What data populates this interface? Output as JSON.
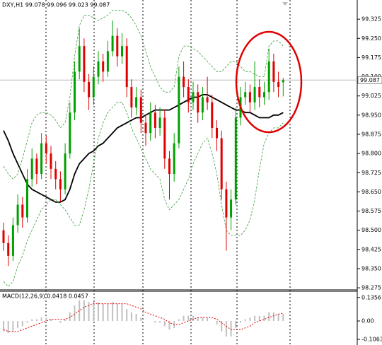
{
  "chart_data": [
    {
      "type": "candlestick",
      "title": "DXY,H1 99.078 99.096 99.023 99.087",
      "up_color": "#00a000",
      "down_color": "#e00000",
      "ylim": [
        98.267,
        99.4
      ],
      "yticks": [
        98.275,
        {
          "value": 98.35,
          "label": "98.350"
        },
        98.425,
        {
          "value": 98.5,
          "label": "98.500"
        },
        98.575,
        {
          "value": 98.65,
          "label": "98.650"
        },
        98.725,
        {
          "value": 98.8,
          "label": "98.800"
        },
        98.875,
        {
          "value": 98.95,
          "label": "98.950"
        },
        99.025,
        {
          "value": 99.1,
          "label": "99.100"
        },
        99.175,
        {
          "value": 99.25,
          "label": "99.250"
        },
        99.325
      ],
      "price_marker": {
        "value": 99.087,
        "label": "99.087"
      },
      "candles": [
        [
          98.5,
          98.53,
          98.42,
          98.45
        ],
        [
          98.45,
          98.48,
          98.36,
          98.4
        ],
        [
          98.4,
          98.55,
          98.38,
          98.52
        ],
        [
          98.52,
          98.64,
          98.49,
          98.6
        ],
        [
          98.6,
          98.63,
          98.51,
          98.55
        ],
        [
          98.55,
          98.74,
          98.53,
          98.7
        ],
        [
          98.7,
          98.82,
          98.67,
          98.78
        ],
        [
          98.78,
          98.8,
          98.68,
          98.72
        ],
        [
          98.72,
          98.88,
          98.7,
          98.84
        ],
        [
          98.84,
          98.87,
          98.76,
          98.8
        ],
        [
          98.8,
          98.83,
          98.7,
          98.74
        ],
        [
          98.74,
          98.77,
          98.66,
          98.7
        ],
        [
          98.7,
          98.73,
          98.61,
          98.66
        ],
        [
          98.66,
          98.84,
          98.64,
          98.8
        ],
        [
          98.8,
          99.0,
          98.78,
          98.96
        ],
        [
          98.96,
          99.16,
          98.93,
          99.12
        ],
        [
          99.12,
          99.29,
          99.09,
          99.22
        ],
        [
          99.22,
          99.25,
          99.04,
          99.08
        ],
        [
          99.08,
          99.11,
          98.97,
          99.02
        ],
        [
          99.02,
          99.14,
          98.99,
          99.1
        ],
        [
          99.1,
          99.2,
          99.07,
          99.16
        ],
        [
          99.16,
          99.19,
          99.08,
          99.12
        ],
        [
          99.12,
          99.24,
          99.1,
          99.2
        ],
        [
          99.2,
          99.32,
          99.18,
          99.26
        ],
        [
          99.26,
          99.29,
          99.14,
          99.18
        ],
        [
          99.18,
          99.27,
          99.15,
          99.22
        ],
        [
          99.22,
          99.25,
          99.02,
          99.06
        ],
        [
          99.06,
          99.09,
          98.94,
          98.98
        ],
        [
          98.98,
          99.06,
          98.95,
          99.02
        ],
        [
          99.02,
          99.05,
          98.88,
          98.92
        ],
        [
          98.92,
          98.95,
          98.83,
          98.88
        ],
        [
          98.88,
          99.0,
          98.85,
          98.96
        ],
        [
          98.96,
          98.99,
          98.86,
          98.9
        ],
        [
          98.9,
          98.98,
          98.87,
          98.94
        ],
        [
          98.94,
          98.97,
          98.74,
          98.78
        ],
        [
          98.78,
          98.81,
          98.62,
          98.72
        ],
        [
          98.72,
          98.88,
          98.69,
          98.84
        ],
        [
          98.84,
          99.14,
          98.82,
          99.1
        ],
        [
          99.1,
          99.16,
          99.02,
          99.06
        ],
        [
          99.06,
          99.09,
          98.96,
          99.0
        ],
        [
          99.0,
          99.08,
          98.97,
          99.04
        ],
        [
          99.04,
          99.07,
          98.92,
          98.96
        ],
        [
          98.96,
          99.06,
          98.93,
          99.02
        ],
        [
          99.02,
          99.1,
          98.97,
          99.0
        ],
        [
          99.0,
          99.03,
          98.86,
          98.9
        ],
        [
          98.9,
          98.93,
          98.81,
          98.86
        ],
        [
          98.86,
          98.89,
          98.62,
          98.66
        ],
        [
          98.66,
          98.69,
          98.42,
          98.55
        ],
        [
          98.55,
          98.66,
          98.5,
          98.62
        ],
        [
          98.62,
          98.98,
          98.6,
          98.94
        ],
        [
          98.94,
          99.06,
          98.91,
          99.02
        ],
        [
          99.02,
          99.08,
          98.99,
          99.04
        ],
        [
          99.04,
          99.07,
          98.96,
          99.0
        ],
        [
          99.0,
          99.16,
          98.97,
          99.06
        ],
        [
          99.06,
          99.09,
          98.98,
          99.02
        ],
        [
          99.02,
          99.08,
          98.99,
          99.04
        ],
        [
          99.04,
          99.21,
          99.01,
          99.16
        ],
        [
          99.16,
          99.19,
          99.04,
          99.08
        ],
        [
          99.08,
          99.12,
          99.02,
          99.06
        ],
        [
          99.078,
          99.096,
          99.023,
          99.087
        ]
      ],
      "series": [
        {
          "color": "#000000",
          "style": "solid",
          "values": [
            98.89,
            98.85,
            98.8,
            98.76,
            98.72,
            98.68,
            98.66,
            98.65,
            98.64,
            98.63,
            98.62,
            98.61,
            98.61,
            98.62,
            98.66,
            98.72,
            98.76,
            98.78,
            98.8,
            98.81,
            98.83,
            98.84,
            98.86,
            98.88,
            98.9,
            98.91,
            98.92,
            98.93,
            98.94,
            98.94,
            98.95,
            98.96,
            98.97,
            98.97,
            98.97,
            98.97,
            98.98,
            98.99,
            99.0,
            99.01,
            99.02,
            99.02,
            99.03,
            99.03,
            99.02,
            99.01,
            99.0,
            98.99,
            98.98,
            98.97,
            98.97,
            98.96,
            98.96,
            98.95,
            98.94,
            98.94,
            98.94,
            98.95,
            98.95,
            98.96
          ]
        },
        {
          "color": "#3a9a3a",
          "style": "dashed",
          "values": [
            98.75,
            98.72,
            98.7,
            98.72,
            98.78,
            98.85,
            98.92,
            98.95,
            98.96,
            98.96,
            98.95,
            98.93,
            98.9,
            98.92,
            99.02,
            99.18,
            99.3,
            99.34,
            99.34,
            99.33,
            99.32,
            99.33,
            99.34,
            99.36,
            99.36,
            99.36,
            99.35,
            99.33,
            99.3,
            99.26,
            99.2,
            99.14,
            99.1,
            99.06,
            99.04,
            99.04,
            99.06,
            99.18,
            99.22,
            99.22,
            99.21,
            99.2,
            99.18,
            99.16,
            99.14,
            99.12,
            99.12,
            99.14,
            99.16,
            99.16,
            99.14,
            99.12,
            99.12,
            99.11,
            99.1,
            99.1,
            99.22,
            99.24,
            99.24,
            99.22
          ]
        },
        {
          "color": "#3a9a3a",
          "style": "dashed",
          "values": [
            98.3,
            98.28,
            98.3,
            98.36,
            98.4,
            98.46,
            98.5,
            98.54,
            98.58,
            98.6,
            98.62,
            98.62,
            98.6,
            98.58,
            98.55,
            98.52,
            98.52,
            98.58,
            98.66,
            98.76,
            98.86,
            98.92,
            98.96,
            98.98,
            99.0,
            99.0,
            98.96,
            98.9,
            98.86,
            98.82,
            98.78,
            98.74,
            98.72,
            98.7,
            98.62,
            98.58,
            98.6,
            98.62,
            98.66,
            98.7,
            98.76,
            98.8,
            98.84,
            98.86,
            98.8,
            98.72,
            98.6,
            98.5,
            98.48,
            98.48,
            98.48,
            98.5,
            98.54,
            98.62,
            98.74,
            98.84,
            98.88,
            98.9,
            98.9,
            98.92
          ]
        }
      ]
    },
    {
      "type": "macd",
      "title": "MACD(12,26,9) 0.0418 0.0457",
      "color": "#c0c0c0",
      "signal_color": "#e00000",
      "ylim": [
        -0.139,
        0.172
      ],
      "yticks": [
        0.1356,
        {
          "value": 0,
          "label": "0.00"
        },
        -0.1063
      ],
      "values": [
        -0.06,
        -0.07,
        -0.06,
        -0.04,
        -0.03,
        -0.01,
        0.01,
        0.01,
        0.02,
        0.02,
        0.01,
        0,
        -0.01,
        0.01,
        0.05,
        0.09,
        0.12,
        0.12,
        0.11,
        0.11,
        0.11,
        0.1,
        0.1,
        0.11,
        0.1,
        0.1,
        0.07,
        0.05,
        0.04,
        0.02,
        0,
        0,
        -0.01,
        -0.01,
        -0.03,
        -0.05,
        -0.04,
        0.01,
        0.03,
        0.03,
        0.03,
        0.02,
        0.02,
        0.02,
        0,
        -0.02,
        -0.06,
        -0.09,
        -0.09,
        -0.04,
        -0.01,
        0.01,
        0.02,
        0.03,
        0.03,
        0.03,
        0.05,
        0.05,
        0.04,
        0.0418
      ],
      "signal": [
        -0.05,
        -0.06,
        -0.06,
        -0.06,
        -0.05,
        -0.04,
        -0.03,
        -0.02,
        -0.01,
        0,
        0.01,
        0.01,
        0.01,
        0.01,
        0.02,
        0.04,
        0.06,
        0.08,
        0.09,
        0.1,
        0.1,
        0.1,
        0.1,
        0.1,
        0.1,
        0.1,
        0.1,
        0.09,
        0.08,
        0.07,
        0.05,
        0.04,
        0.03,
        0.02,
        0.01,
        -0.01,
        -0.02,
        -0.02,
        -0.01,
        0,
        0.01,
        0.02,
        0.02,
        0.02,
        0.02,
        0.01,
        -0.01,
        -0.03,
        -0.05,
        -0.05,
        -0.05,
        -0.04,
        -0.03,
        -0.01,
        0,
        0.01,
        0.02,
        0.03,
        0.04,
        0.0457
      ]
    }
  ]
}
